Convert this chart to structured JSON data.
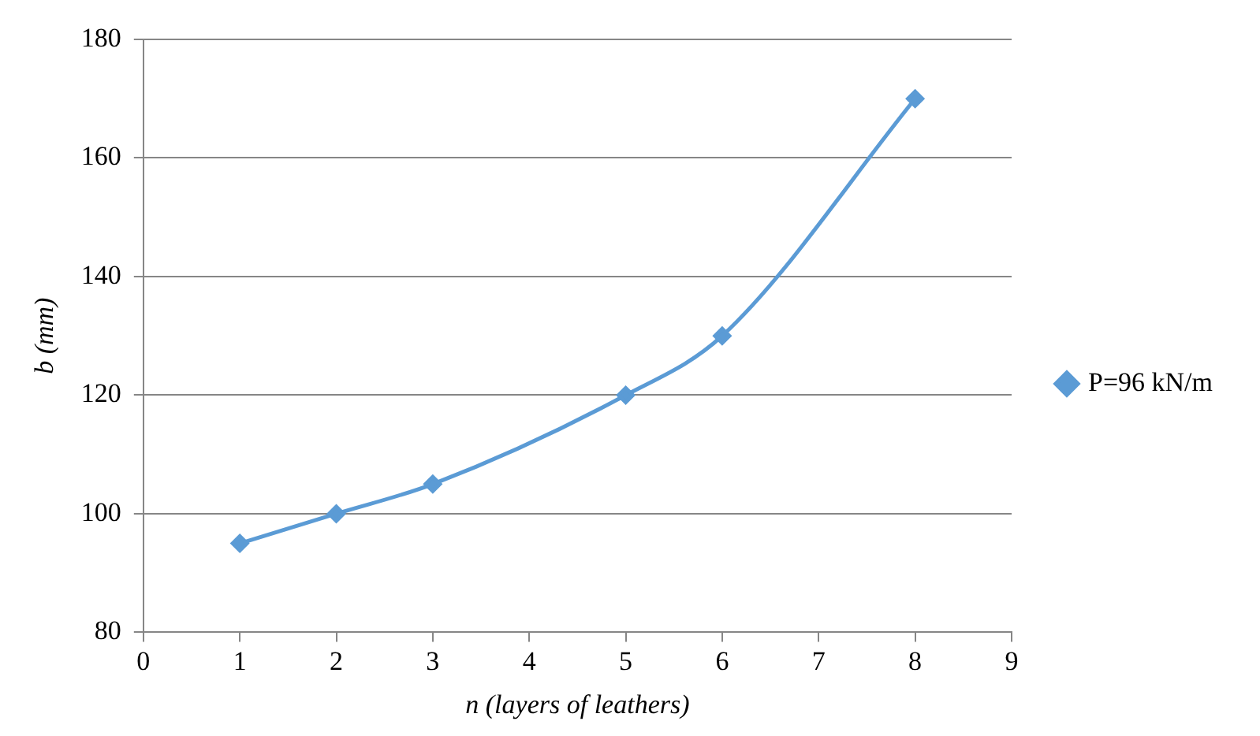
{
  "chart_data": {
    "type": "line",
    "xlabel": "n (layers of leathers)",
    "ylabel": "b (mm)",
    "x": [
      1,
      2,
      3,
      5,
      6,
      8
    ],
    "series": [
      {
        "name": "P=96 kN/m",
        "color": "#5b9bd5",
        "values": [
          95,
          100,
          105,
          120,
          130,
          170
        ]
      }
    ],
    "xlim": [
      0,
      9
    ],
    "xticks": [
      0,
      1,
      2,
      3,
      4,
      5,
      6,
      7,
      8,
      9
    ],
    "ylim": [
      80,
      180
    ],
    "yticks": [
      80,
      100,
      120,
      140,
      160,
      180
    ],
    "grid": "y",
    "legend": "right",
    "marker": "diamond",
    "line_style": "solid"
  }
}
